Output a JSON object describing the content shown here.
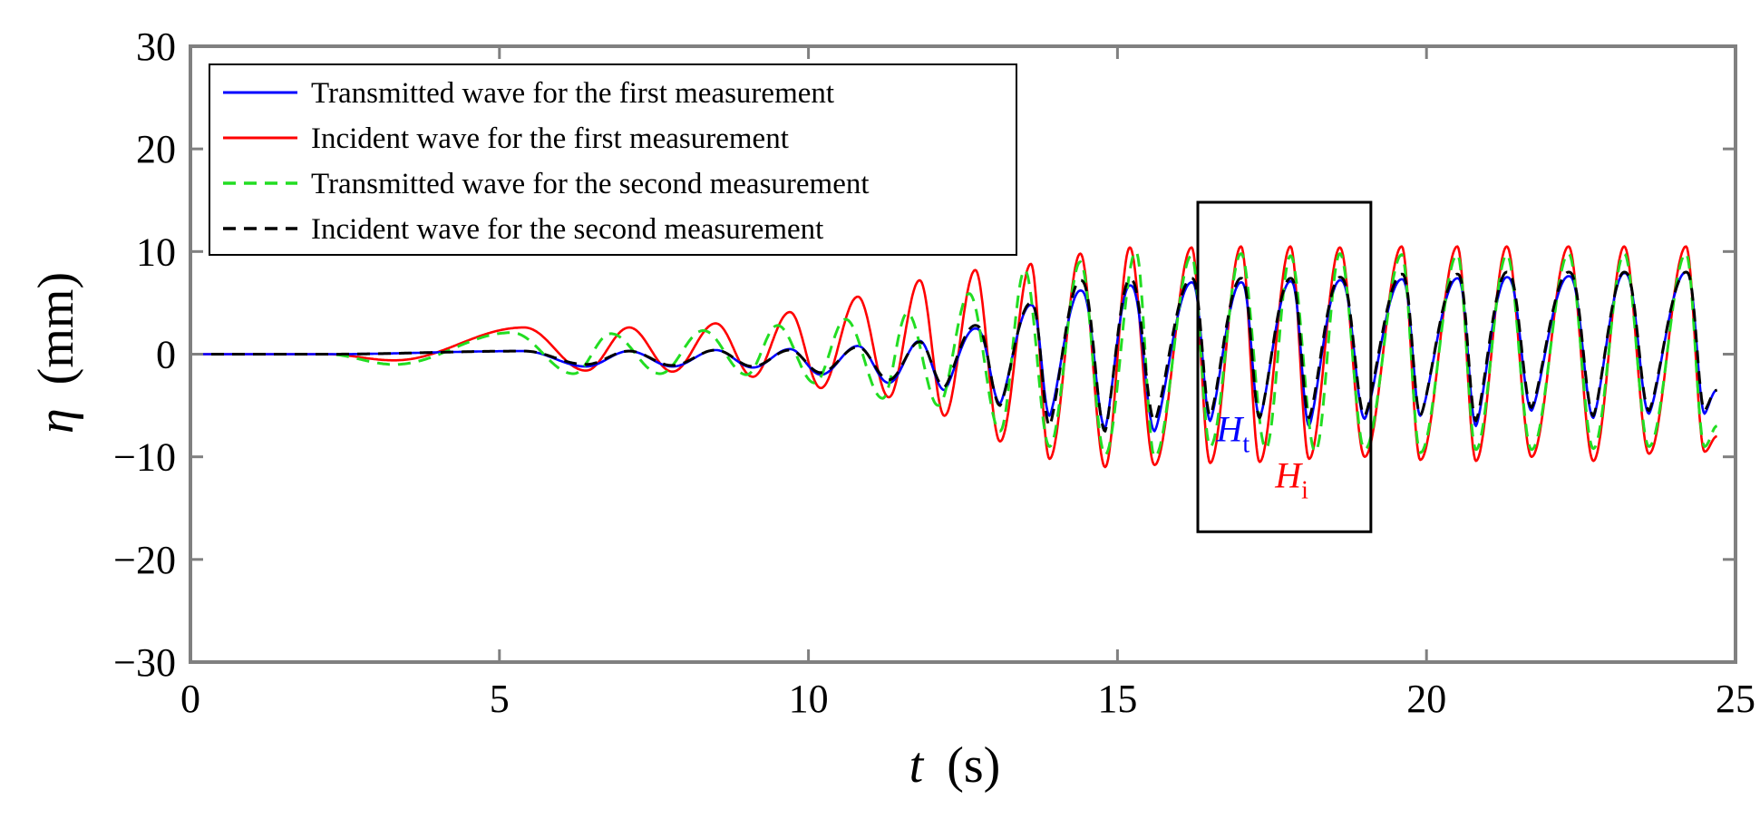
{
  "chart_data": {
    "type": "line",
    "xlabel": "t (s)",
    "xlabel_var": "t",
    "xlabel_unit": "(s)",
    "ylabel": "η (mm)",
    "ylabel_var": "η",
    "ylabel_unit": "(mm)",
    "xlim": [
      0,
      25
    ],
    "ylim": [
      -30,
      30
    ],
    "x_ticks": [
      0,
      5,
      10,
      15,
      20,
      25
    ],
    "y_ticks": [
      -30,
      -20,
      -10,
      0,
      10,
      20,
      30
    ],
    "x_tick_labels": [
      "0",
      "5",
      "10",
      "15",
      "20",
      "25"
    ],
    "y_tick_labels": [
      "−30",
      "−20",
      "−10",
      "0",
      "10",
      "20",
      "30"
    ],
    "grid": false,
    "legend_position": "top-left",
    "series": [
      {
        "name": "Transmitted wave for the first measurement",
        "color": "#0000ff",
        "dash": "solid",
        "waveform": "transmitted",
        "peaks": [
          [
            5.4,
            0.3
          ],
          [
            6.4,
            -1.2
          ],
          [
            7.1,
            0.3
          ],
          [
            7.8,
            -1.2
          ],
          [
            8.5,
            0.4
          ],
          [
            9.1,
            -1.3
          ],
          [
            9.7,
            0.5
          ],
          [
            10.2,
            -2.0
          ],
          [
            10.8,
            0.8
          ],
          [
            11.3,
            -2.8
          ],
          [
            11.8,
            1.3
          ],
          [
            12.2,
            -3.5
          ],
          [
            12.7,
            2.5
          ],
          [
            13.1,
            -4.8
          ],
          [
            13.6,
            4.8
          ],
          [
            13.9,
            -6.0
          ],
          [
            14.4,
            6.2
          ],
          [
            14.8,
            -7.2
          ],
          [
            15.2,
            6.7
          ],
          [
            15.6,
            -7.5
          ],
          [
            16.2,
            7.0
          ],
          [
            16.5,
            -6.5
          ],
          [
            17.0,
            7.0
          ],
          [
            17.3,
            -6.2
          ],
          [
            17.8,
            7.1
          ],
          [
            18.1,
            -7.0
          ],
          [
            18.6,
            7.2
          ],
          [
            19.0,
            -6.3
          ],
          [
            19.6,
            7.3
          ],
          [
            19.9,
            -6.0
          ],
          [
            20.5,
            7.4
          ],
          [
            20.8,
            -7.0
          ],
          [
            21.3,
            7.5
          ],
          [
            21.7,
            -5.5
          ],
          [
            22.3,
            7.6
          ],
          [
            22.7,
            -6.2
          ],
          [
            23.2,
            7.9
          ],
          [
            23.6,
            -5.8
          ],
          [
            24.2,
            8.0
          ],
          [
            24.5,
            -5.8
          ],
          [
            24.7,
            -3.5
          ]
        ]
      },
      {
        "name": "Incident wave for the first measurement",
        "color": "#ff0000",
        "dash": "solid",
        "waveform": "incident",
        "peaks": [
          [
            3.3,
            -0.6
          ],
          [
            5.4,
            2.6
          ],
          [
            6.4,
            -1.6
          ],
          [
            7.1,
            2.6
          ],
          [
            7.8,
            -1.7
          ],
          [
            8.5,
            3.0
          ],
          [
            9.1,
            -2.2
          ],
          [
            9.7,
            4.1
          ],
          [
            10.2,
            -3.3
          ],
          [
            10.8,
            5.6
          ],
          [
            11.3,
            -4.2
          ],
          [
            11.8,
            7.2
          ],
          [
            12.2,
            -6.0
          ],
          [
            12.7,
            8.2
          ],
          [
            13.1,
            -8.5
          ],
          [
            13.6,
            8.8
          ],
          [
            13.9,
            -10.2
          ],
          [
            14.4,
            9.8
          ],
          [
            14.8,
            -11.0
          ],
          [
            15.2,
            10.4
          ],
          [
            15.6,
            -10.8
          ],
          [
            16.2,
            10.4
          ],
          [
            16.5,
            -10.6
          ],
          [
            17.0,
            10.5
          ],
          [
            17.3,
            -10.5
          ],
          [
            17.8,
            10.5
          ],
          [
            18.1,
            -10.2
          ],
          [
            18.6,
            10.4
          ],
          [
            19.0,
            -10.0
          ],
          [
            19.6,
            10.5
          ],
          [
            19.9,
            -10.3
          ],
          [
            20.5,
            10.5
          ],
          [
            20.8,
            -10.4
          ],
          [
            21.3,
            10.5
          ],
          [
            21.7,
            -10.0
          ],
          [
            22.3,
            10.5
          ],
          [
            22.7,
            -10.4
          ],
          [
            23.2,
            10.5
          ],
          [
            23.6,
            -9.7
          ],
          [
            24.2,
            10.5
          ],
          [
            24.5,
            -9.5
          ],
          [
            24.7,
            -8.0
          ]
        ]
      },
      {
        "name": "Transmitted wave for the second measurement",
        "color": "#22dd22",
        "dash": "dashed",
        "waveform": "incident",
        "peaks": [
          [
            3.3,
            -1.0
          ],
          [
            5.2,
            2.1
          ],
          [
            6.2,
            -1.9
          ],
          [
            6.8,
            2.0
          ],
          [
            7.6,
            -1.9
          ],
          [
            8.3,
            2.3
          ],
          [
            9.0,
            -2.0
          ],
          [
            9.5,
            2.8
          ],
          [
            10.1,
            -2.8
          ],
          [
            10.6,
            3.4
          ],
          [
            11.2,
            -4.3
          ],
          [
            11.6,
            4.0
          ],
          [
            12.1,
            -5.0
          ],
          [
            12.6,
            5.9
          ],
          [
            13.1,
            -7.5
          ],
          [
            13.5,
            8.2
          ],
          [
            13.9,
            -9.0
          ],
          [
            14.4,
            9.0
          ],
          [
            14.8,
            -9.8
          ],
          [
            15.3,
            10.0
          ],
          [
            15.6,
            -10.0
          ],
          [
            16.2,
            9.6
          ],
          [
            16.5,
            -9.0
          ],
          [
            17.0,
            9.8
          ],
          [
            17.4,
            -9.2
          ],
          [
            17.8,
            9.6
          ],
          [
            18.2,
            -9.5
          ],
          [
            18.6,
            9.8
          ],
          [
            19.0,
            -9.3
          ],
          [
            19.6,
            9.7
          ],
          [
            19.9,
            -9.6
          ],
          [
            20.5,
            9.7
          ],
          [
            20.8,
            -9.3
          ],
          [
            21.3,
            9.7
          ],
          [
            21.7,
            -9.3
          ],
          [
            22.3,
            9.8
          ],
          [
            22.7,
            -9.2
          ],
          [
            23.2,
            9.8
          ],
          [
            23.6,
            -9.0
          ],
          [
            24.2,
            9.8
          ],
          [
            24.5,
            -9.0
          ],
          [
            24.7,
            -7.0
          ]
        ]
      },
      {
        "name": "Incident wave for the second measurement",
        "color": "#000000",
        "dash": "dashed",
        "waveform": "transmitted",
        "peaks": [
          [
            5.4,
            0.3
          ],
          [
            6.4,
            -1.0
          ],
          [
            7.1,
            0.3
          ],
          [
            7.8,
            -1.1
          ],
          [
            8.5,
            0.4
          ],
          [
            9.1,
            -1.2
          ],
          [
            9.7,
            0.4
          ],
          [
            10.2,
            -1.8
          ],
          [
            10.8,
            0.7
          ],
          [
            11.3,
            -2.5
          ],
          [
            11.8,
            1.2
          ],
          [
            12.2,
            -3.2
          ],
          [
            12.7,
            2.8
          ],
          [
            13.1,
            -5.0
          ],
          [
            13.6,
            5.0
          ],
          [
            13.9,
            -7.0
          ],
          [
            14.4,
            7.2
          ],
          [
            14.8,
            -7.5
          ],
          [
            15.2,
            7.3
          ],
          [
            15.6,
            -6.5
          ],
          [
            16.2,
            7.4
          ],
          [
            16.5,
            -6.0
          ],
          [
            17.0,
            7.4
          ],
          [
            17.3,
            -6.2
          ],
          [
            17.8,
            7.4
          ],
          [
            18.1,
            -6.2
          ],
          [
            18.6,
            7.5
          ],
          [
            19.0,
            -6.0
          ],
          [
            19.6,
            7.8
          ],
          [
            19.9,
            -6.0
          ],
          [
            20.5,
            7.8
          ],
          [
            20.8,
            -6.5
          ],
          [
            21.3,
            8.0
          ],
          [
            21.7,
            -5.2
          ],
          [
            22.3,
            8.0
          ],
          [
            22.7,
            -6.0
          ],
          [
            23.2,
            8.0
          ],
          [
            23.6,
            -5.5
          ],
          [
            24.2,
            8.0
          ],
          [
            24.5,
            -5.5
          ],
          [
            24.7,
            -3.5
          ]
        ]
      }
    ],
    "annotation_box": {
      "x": [
        16.3,
        19.1
      ],
      "y": [
        -17.3,
        14.8
      ]
    },
    "annotations": [
      {
        "var": "H",
        "sub": "t",
        "x": 16.6,
        "y": -8.5,
        "color": "#0000ff"
      },
      {
        "var": "H",
        "sub": "i",
        "x": 17.55,
        "y": -13.0,
        "color": "#ff0000"
      }
    ]
  }
}
